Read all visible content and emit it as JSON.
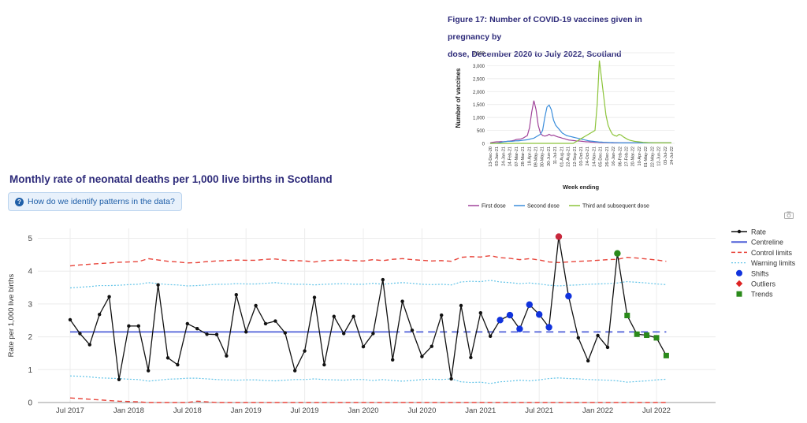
{
  "inset": {
    "title_line1": "Figure 17: Number of COVID-19 vaccines given in pregnancy by",
    "title_line2": "dose, December 2020 to July 2022, Scotland"
  },
  "main": {
    "title": "Monthly rate of neonatal deaths per 1,000 live births in Scotland",
    "help_label": "How do we identify patterns in the data?"
  },
  "chart_data": [
    {
      "id": "inset",
      "type": "line",
      "title": "Figure 17: Number of COVID-19 vaccines given in pregnancy by dose, December 2020 to July 2022, Scotland",
      "xlabel": "Week ending",
      "ylabel": "Number of vaccines",
      "ylim": [
        0,
        3500
      ],
      "yticks": [
        "0",
        "500",
        "1,000",
        "1,500",
        "2,000",
        "2,500",
        "3,000",
        "3,500"
      ],
      "xticks": [
        "13-Dec-20",
        "03-Jan-21",
        "24-Jan-21",
        "14-Feb-21",
        "07-Mar-21",
        "28-Mar-21",
        "18-Apr-21",
        "09-May-21",
        "30-May-21",
        "20-Jun-21",
        "11-Jul-21",
        "01-Aug-21",
        "22-Aug-21",
        "12-Sep-21",
        "03-Oct-21",
        "24-Oct-21",
        "14-Nov-21",
        "05-Dec-21",
        "26-Dec-21",
        "16-Jan-22",
        "06-Feb-22",
        "27-Feb-22",
        "20-Mar-22",
        "10-Apr-22",
        "01-May-22",
        "22-May-22",
        "12-Jun-22",
        "03-Jul-22",
        "24-Jul-22"
      ],
      "legend": "bottom",
      "series": [
        {
          "name": "First dose",
          "color": "#a0439a",
          "values": [
            20,
            40,
            50,
            60,
            60,
            70,
            60,
            70,
            80,
            90,
            100,
            120,
            150,
            160,
            170,
            200,
            250,
            300,
            600,
            1200,
            1650,
            1300,
            700,
            400,
            300,
            280,
            300,
            350,
            300,
            320,
            280,
            250,
            230,
            200,
            180,
            150,
            130,
            120,
            110,
            100,
            90,
            90,
            80,
            70,
            60,
            60,
            50,
            50,
            40,
            40,
            35,
            30,
            30,
            30,
            25,
            25,
            20,
            20,
            20,
            20,
            20,
            20,
            20,
            20,
            20,
            20,
            20,
            20,
            20,
            20,
            20,
            20,
            20,
            20,
            20,
            20,
            20,
            20,
            20,
            20,
            20,
            20,
            20,
            20
          ]
        },
        {
          "name": "Second dose",
          "color": "#3a8ddb",
          "values": [
            0,
            0,
            0,
            10,
            20,
            40,
            60,
            70,
            80,
            80,
            80,
            90,
            100,
            100,
            110,
            120,
            130,
            140,
            160,
            180,
            200,
            250,
            300,
            350,
            500,
            1000,
            1400,
            1480,
            1300,
            900,
            700,
            600,
            500,
            400,
            350,
            300,
            280,
            260,
            240,
            220,
            200,
            180,
            160,
            140,
            120,
            100,
            90,
            80,
            70,
            60,
            50,
            50,
            40,
            40,
            35,
            30,
            30,
            25,
            25,
            20,
            20,
            20,
            20,
            20,
            20,
            20,
            20,
            20,
            20,
            20,
            20,
            20,
            20,
            20,
            20,
            20,
            20,
            20,
            20,
            20,
            20,
            20,
            20,
            20
          ]
        },
        {
          "name": "Third and subsequent dose",
          "color": "#8cc43a",
          "values": [
            0,
            0,
            0,
            0,
            0,
            0,
            0,
            0,
            0,
            0,
            0,
            0,
            0,
            0,
            0,
            0,
            0,
            0,
            0,
            0,
            0,
            0,
            0,
            0,
            0,
            0,
            0,
            0,
            0,
            0,
            0,
            0,
            0,
            0,
            0,
            0,
            0,
            0,
            0,
            50,
            100,
            150,
            200,
            250,
            300,
            350,
            400,
            450,
            500,
            1500,
            3200,
            2500,
            1800,
            1100,
            700,
            500,
            350,
            300,
            280,
            350,
            320,
            250,
            200,
            150,
            120,
            100,
            80,
            70,
            60,
            50,
            40,
            35,
            30,
            25,
            25,
            20,
            20,
            20,
            20,
            20,
            20,
            20,
            20,
            20
          ]
        }
      ]
    },
    {
      "id": "main",
      "type": "line",
      "title": "Monthly rate of neonatal deaths per 1,000 live births in Scotland",
      "xlabel": "",
      "ylabel": "Rate per 1,000 live births",
      "ylim": [
        0,
        5.3
      ],
      "yticks": [
        0,
        1,
        2,
        3,
        4,
        5
      ],
      "xticks": [
        "Jul 2017",
        "Jan 2018",
        "Jul 2018",
        "Jan 2019",
        "Jul 2019",
        "Jan 2020",
        "Jul 2020",
        "Jan 2021",
        "Jul 2021",
        "Jan 2022",
        "Jul 2022"
      ],
      "start_month": "Jul 2017",
      "grid": true,
      "legend": "right",
      "rate": [
        2.52,
        2.1,
        1.76,
        2.68,
        3.22,
        0.7,
        2.33,
        2.33,
        0.97,
        3.58,
        1.36,
        1.15,
        2.4,
        2.25,
        2.08,
        2.07,
        1.42,
        3.28,
        2.15,
        2.95,
        2.4,
        2.48,
        2.12,
        0.97,
        1.57,
        3.2,
        1.15,
        2.62,
        2.1,
        2.62,
        1.7,
        2.1,
        3.74,
        1.3,
        3.08,
        2.2,
        1.4,
        1.71,
        2.66,
        0.72,
        2.95,
        1.37,
        2.73,
        2.02,
        2.51,
        2.66,
        2.24,
        2.98,
        2.68,
        2.29,
        5.05,
        3.24,
        1.97,
        1.27,
        2.04,
        1.68,
        4.54,
        2.65,
        2.08,
        2.05,
        1.97,
        1.43
      ],
      "centreline": {
        "value": 2.15,
        "solid_until_index": 33
      },
      "upper_control": [
        4.16,
        4.19,
        4.21,
        4.23,
        4.25,
        4.27,
        4.28,
        4.29,
        4.38,
        4.34,
        4.3,
        4.28,
        4.25,
        4.26,
        4.29,
        4.31,
        4.32,
        4.34,
        4.33,
        4.33,
        4.36,
        4.37,
        4.33,
        4.32,
        4.31,
        4.28,
        4.32,
        4.33,
        4.34,
        4.32,
        4.31,
        4.35,
        4.32,
        4.36,
        4.38,
        4.35,
        4.33,
        4.31,
        4.32,
        4.3,
        4.42,
        4.44,
        4.43,
        4.47,
        4.41,
        4.39,
        4.35,
        4.38,
        4.34,
        4.28,
        4.26,
        4.28,
        4.3,
        4.31,
        4.33,
        4.35,
        4.36,
        4.42,
        4.4,
        4.37,
        4.34,
        4.3
      ],
      "upper_warning": [
        3.49,
        3.51,
        3.53,
        3.56,
        3.56,
        3.57,
        3.59,
        3.6,
        3.65,
        3.62,
        3.59,
        3.58,
        3.55,
        3.56,
        3.58,
        3.6,
        3.6,
        3.62,
        3.61,
        3.61,
        3.63,
        3.65,
        3.62,
        3.6,
        3.6,
        3.58,
        3.6,
        3.61,
        3.62,
        3.6,
        3.6,
        3.63,
        3.6,
        3.63,
        3.65,
        3.63,
        3.6,
        3.59,
        3.6,
        3.58,
        3.67,
        3.69,
        3.68,
        3.72,
        3.67,
        3.65,
        3.62,
        3.64,
        3.61,
        3.57,
        3.55,
        3.57,
        3.58,
        3.6,
        3.61,
        3.62,
        3.64,
        3.68,
        3.66,
        3.64,
        3.61,
        3.59
      ],
      "lower_warning": [
        0.81,
        0.8,
        0.78,
        0.75,
        0.74,
        0.73,
        0.71,
        0.7,
        0.65,
        0.68,
        0.71,
        0.72,
        0.74,
        0.74,
        0.72,
        0.7,
        0.69,
        0.68,
        0.69,
        0.69,
        0.67,
        0.66,
        0.68,
        0.7,
        0.7,
        0.72,
        0.7,
        0.69,
        0.68,
        0.7,
        0.7,
        0.67,
        0.7,
        0.67,
        0.65,
        0.67,
        0.7,
        0.71,
        0.7,
        0.72,
        0.63,
        0.61,
        0.62,
        0.58,
        0.63,
        0.65,
        0.68,
        0.66,
        0.69,
        0.73,
        0.75,
        0.73,
        0.72,
        0.7,
        0.69,
        0.68,
        0.66,
        0.62,
        0.64,
        0.66,
        0.69,
        0.71
      ],
      "lower_control": [
        0.14,
        0.12,
        0.1,
        0.08,
        0.06,
        0.04,
        0.03,
        0.02,
        0,
        0,
        0,
        0,
        0,
        0.04,
        0.02,
        0,
        0,
        0,
        0,
        0,
        0,
        0,
        0,
        0,
        0,
        0,
        0,
        0,
        0,
        0,
        0,
        0,
        0,
        0,
        0,
        0,
        0,
        0,
        0,
        0,
        0,
        0,
        0,
        0,
        0,
        0,
        0,
        0,
        0,
        0,
        0,
        0,
        0,
        0,
        0,
        0,
        0,
        0,
        0,
        0,
        0,
        0
      ],
      "shifts_indices": [
        44,
        45,
        46,
        47,
        48,
        49,
        51
      ],
      "outliers_indices": [
        50
      ],
      "trends_indices": [
        56,
        57,
        58,
        59,
        60,
        61
      ],
      "legend_items": [
        {
          "name": "Rate",
          "color": "#111111",
          "kind": "line-marker"
        },
        {
          "name": "Centreline",
          "color": "#4f5fd8",
          "kind": "line"
        },
        {
          "name": "Control limits",
          "color": "#e8443a",
          "kind": "dash"
        },
        {
          "name": "Warning limits",
          "color": "#63c4e8",
          "kind": "dot"
        },
        {
          "name": "Shifts",
          "color": "#1133dd",
          "kind": "circle"
        },
        {
          "name": "Outliers",
          "color": "#dd2222",
          "kind": "diamond"
        },
        {
          "name": "Trends",
          "color": "#2a8a1a",
          "kind": "square"
        }
      ]
    }
  ]
}
